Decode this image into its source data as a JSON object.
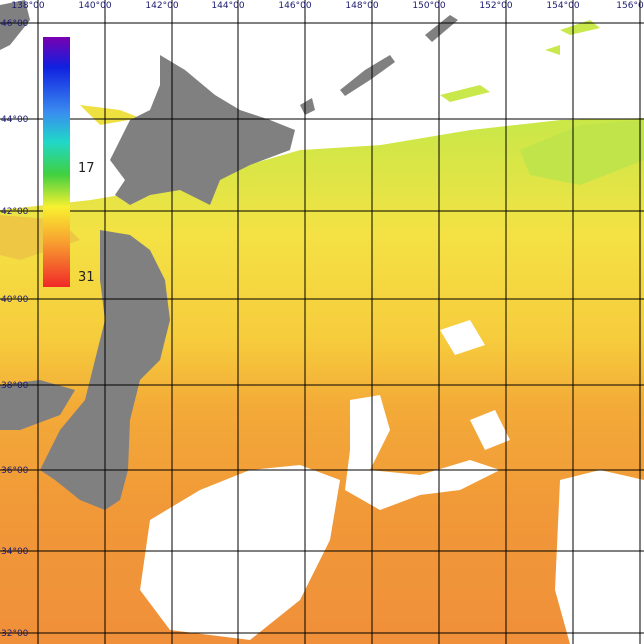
{
  "map": {
    "longitude_labels": [
      "138°00",
      "140°00",
      "142°00",
      "144°00",
      "146°00",
      "148°00",
      "150°00",
      "152°00",
      "154°00",
      "156°0"
    ],
    "latitude_labels": [
      "46°00",
      "44°00",
      "42°00",
      "40°00",
      "38°00",
      "36°00",
      "34°00",
      "32°00"
    ],
    "colorbar_labels": [
      "17",
      "31"
    ]
  }
}
